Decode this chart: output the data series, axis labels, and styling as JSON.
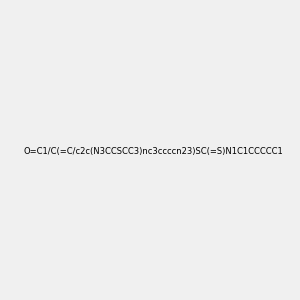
{
  "smiles": "O=C1/C(=C/c2c(N3CCSCC3)nc3ccccn23)SC(=S)N1C1CCCCC1",
  "image_size": 300,
  "background_color": "#f0f0f0",
  "bond_colors": {
    "default": [
      0,
      0,
      0
    ],
    "N": [
      0,
      0,
      1
    ],
    "O": [
      1,
      0,
      0
    ],
    "S": [
      0.8,
      0.8,
      0
    ]
  }
}
